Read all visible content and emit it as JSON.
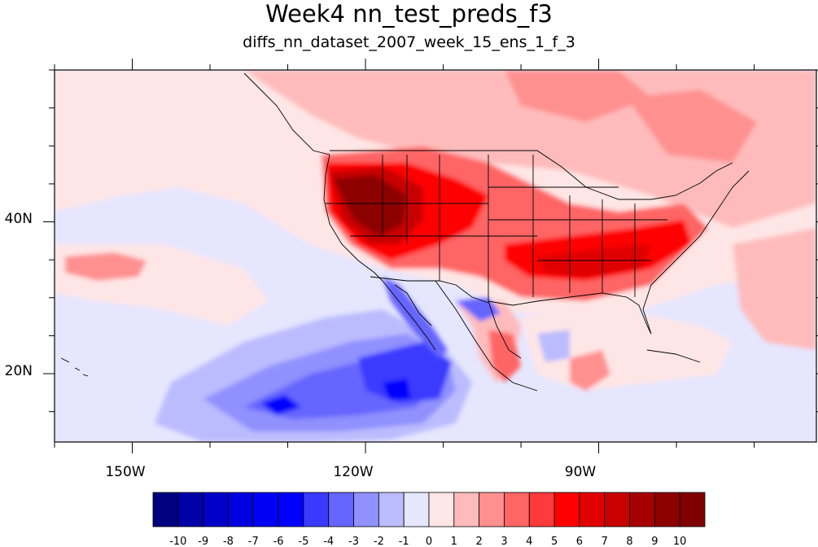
{
  "title": "Week4 nn_test_preds_f3",
  "subtitle": "diffs_nn_dataset_2007_week_15_ens_1_f_3",
  "map": {
    "lon_range": [
      -160,
      -62
    ],
    "lat_range": [
      11,
      60
    ],
    "lon_ticks": [
      {
        "value": -150,
        "label": "150W"
      },
      {
        "value": -120,
        "label": "120W"
      },
      {
        "value": -90,
        "label": "90W"
      }
    ],
    "lat_ticks": [
      {
        "value": 40,
        "label": "40N"
      },
      {
        "value": 20,
        "label": "20N"
      }
    ]
  },
  "colorbar": {
    "labels": [
      "-10",
      "-9",
      "-8",
      "-7",
      "-6",
      "-5",
      "-4",
      "-3",
      "-2",
      "-1",
      "0",
      "1",
      "2",
      "3",
      "4",
      "5",
      "6",
      "7",
      "8",
      "9",
      "10"
    ],
    "colors": [
      "#000080",
      "#0000a6",
      "#0000c8",
      "#0000e0",
      "#0000f5",
      "#0000ff",
      "#3a3aff",
      "#6565ff",
      "#9090ff",
      "#bbbbff",
      "#e6e6ff",
      "#ffe6e6",
      "#ffbbbb",
      "#ff9090",
      "#ff6565",
      "#ff3a3a",
      "#ff0000",
      "#e00000",
      "#c80000",
      "#a60000",
      "#8c0000",
      "#800000"
    ]
  },
  "regions": {
    "warm_west": "#8c0000",
    "mid_red": "#ff3a3a",
    "light_red": "#ffbbbb",
    "cold_pacific": "#3a3aff"
  }
}
